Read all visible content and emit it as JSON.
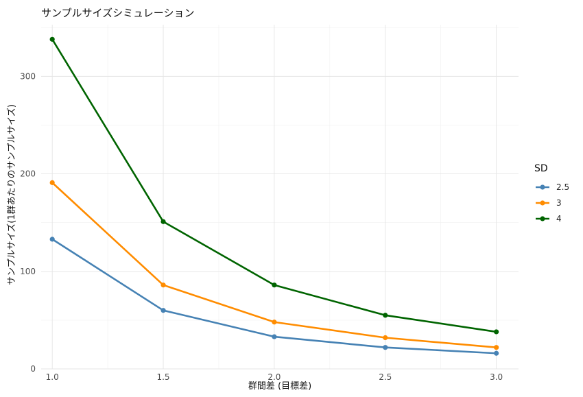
{
  "chart_data": {
    "type": "line",
    "title": "サンプルサイズシミュレーション",
    "xlabel": "群間差 (目標差)",
    "ylabel": "サンプルサイズ(1群あたりのサンプルサイズ)",
    "x": [
      1.0,
      1.5,
      2.0,
      2.5,
      3.0
    ],
    "x_ticks": [
      "1.0",
      "1.5",
      "2.0",
      "2.5",
      "3.0"
    ],
    "y_ticks": [
      "0",
      "100",
      "200",
      "300"
    ],
    "xlim": [
      0.95,
      3.1
    ],
    "ylim": [
      0,
      353
    ],
    "grid": true,
    "legend": {
      "title": "SD",
      "position": "right"
    },
    "series": [
      {
        "name": "2.5",
        "color": "#4682B4",
        "values": [
          133,
          60,
          33,
          22,
          16
        ]
      },
      {
        "name": "3",
        "color": "#FF8C00",
        "values": [
          191,
          86,
          48,
          32,
          22
        ]
      },
      {
        "name": "4",
        "color": "#006400",
        "values": [
          338,
          151,
          86,
          55,
          38
        ]
      }
    ]
  }
}
